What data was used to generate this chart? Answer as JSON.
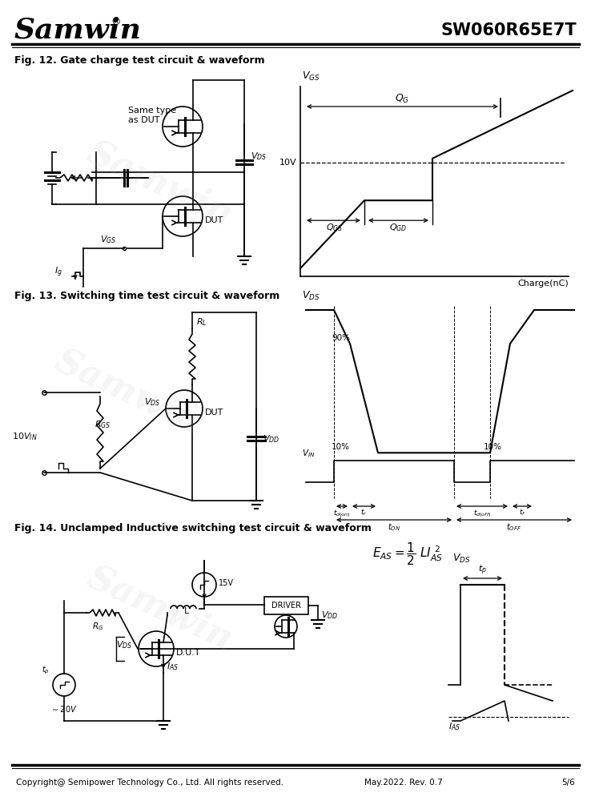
{
  "title_company": "Samwin",
  "title_part": "SW060R65E7T",
  "fig12_title": "Fig. 12. Gate charge test circuit & waveform",
  "fig13_title": "Fig. 13. Switching time test circuit & waveform",
  "fig14_title": "Fig. 14. Unclamped Inductive switching test circuit & waveform",
  "footer_left": "Copyright@ Semipower Technology Co., Ltd. All rights reserved.",
  "footer_mid": "May.2022. Rev. 0.7",
  "footer_right": "5/6",
  "bg_color": "#ffffff",
  "line_color": "#000000"
}
